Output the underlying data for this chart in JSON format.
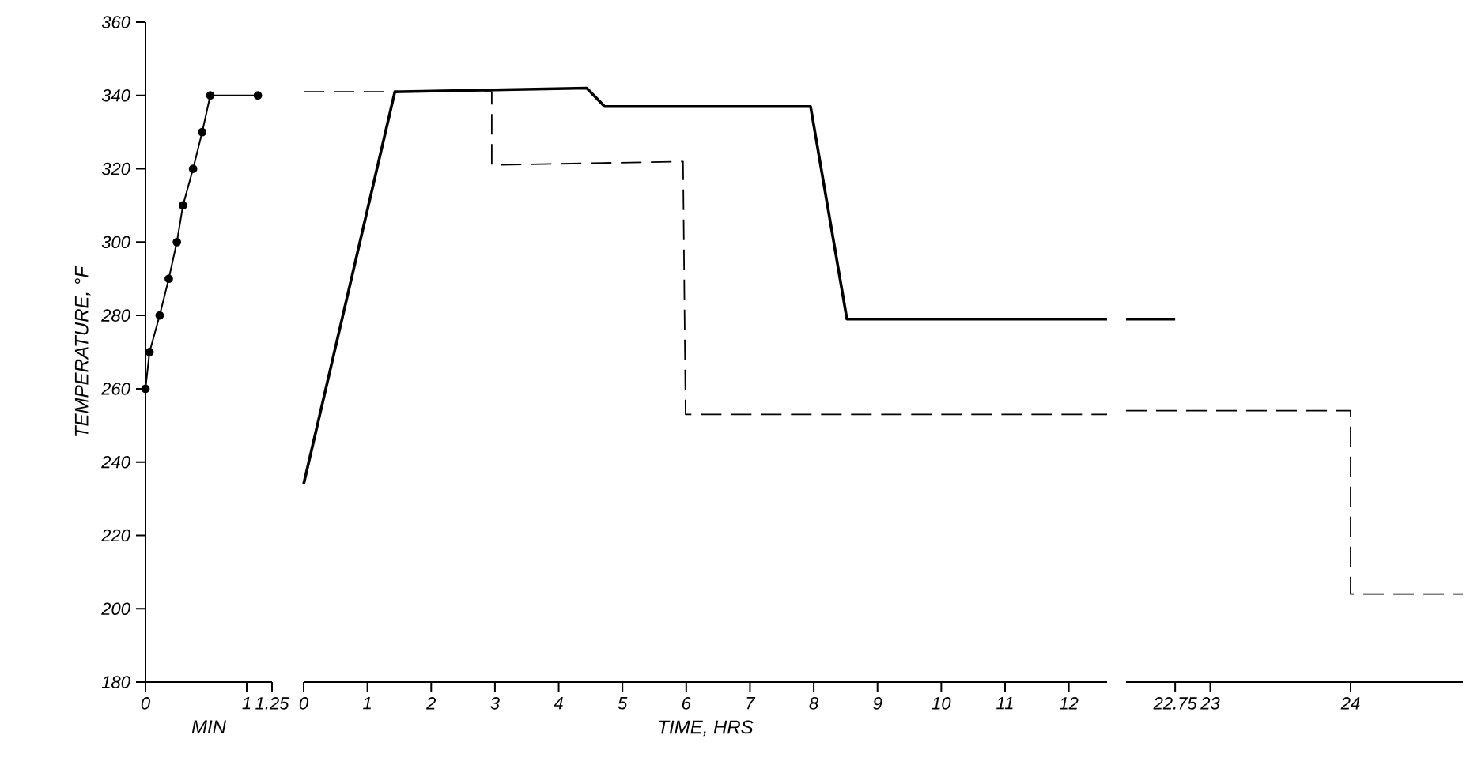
{
  "chart_data": [
    {
      "type": "line",
      "xlim": [
        0,
        1.25
      ],
      "xticks": [
        0,
        1,
        1.25
      ],
      "ylim": [
        180,
        360
      ],
      "yticks": [
        180,
        200,
        220,
        240,
        260,
        280,
        300,
        320,
        340,
        360
      ],
      "xlabel": "MIN",
      "ylabel": "TEMPERATURE, °F",
      "marker": "circle",
      "series": [
        {
          "color": "#000000",
          "line_style": "solid",
          "x": [
            0,
            0.04,
            0.14,
            0.23,
            0.31,
            0.37,
            0.47,
            0.56,
            0.64,
            1.11
          ],
          "values": [
            260,
            270,
            280,
            290,
            300,
            310,
            320,
            330,
            340,
            340
          ]
        }
      ]
    },
    {
      "type": "line",
      "xlim": [
        0,
        12.6
      ],
      "xticks": [
        0,
        1,
        2,
        3,
        4,
        5,
        6,
        7,
        8,
        9,
        10,
        11,
        12
      ],
      "ylim": [
        180,
        360
      ],
      "tick_labels": "x",
      "xlabel": "TIME, HRS",
      "series": [
        {
          "color": "#000000",
          "line_style": "solid",
          "x": [
            0,
            1.43,
            4.44,
            4.72,
            7.95,
            8.52,
            12.6
          ],
          "values": [
            234,
            341,
            342,
            337,
            337,
            279,
            279
          ]
        },
        {
          "color": "#000000",
          "line_style": "dashed",
          "x": [
            0,
            2.95,
            2.95,
            5.95,
            5.99,
            12.6
          ],
          "values": [
            341,
            341,
            321,
            322,
            253,
            253
          ]
        }
      ]
    },
    {
      "type": "line",
      "xlim": [
        22.4,
        24.8
      ],
      "xticks": [
        22.75,
        23,
        24
      ],
      "ylim": [
        180,
        360
      ],
      "tick_labels": "x",
      "series": [
        {
          "color": "#000000",
          "line_style": "solid",
          "x": [
            22.4,
            22.75
          ],
          "values": [
            279,
            279
          ]
        },
        {
          "color": "#000000",
          "line_style": "dashed",
          "x": [
            22.4,
            24,
            24,
            24.8
          ],
          "values": [
            254,
            254,
            204,
            204
          ]
        }
      ]
    }
  ]
}
